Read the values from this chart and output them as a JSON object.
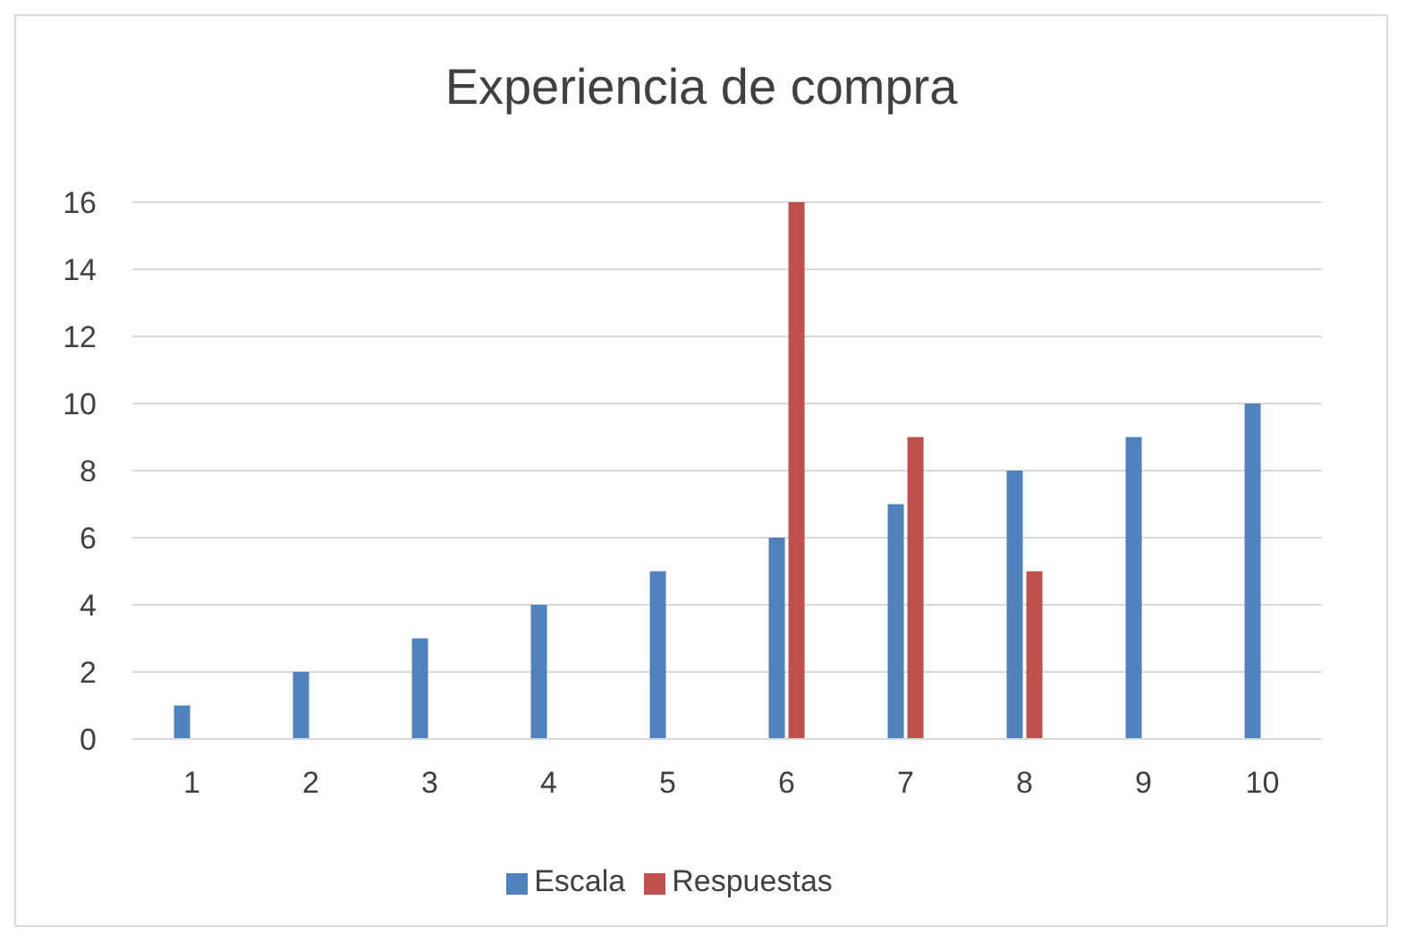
{
  "chart_data": {
    "type": "bar",
    "title": "Experiencia de compra",
    "categories": [
      "1",
      "2",
      "3",
      "4",
      "5",
      "6",
      "7",
      "8",
      "9",
      "10"
    ],
    "series": [
      {
        "name": "Escala",
        "color": "#4f81bd",
        "values": [
          1,
          2,
          3,
          4,
          5,
          6,
          7,
          8,
          9,
          10
        ]
      },
      {
        "name": "Respuestas",
        "color": "#c0504d",
        "values": [
          null,
          null,
          null,
          null,
          null,
          16,
          9,
          5,
          null,
          null
        ]
      }
    ],
    "ylim": [
      0,
      16
    ],
    "yticks": [
      0,
      2,
      4,
      6,
      8,
      10,
      12,
      14,
      16
    ],
    "grid": "y",
    "legend": "bottom"
  }
}
